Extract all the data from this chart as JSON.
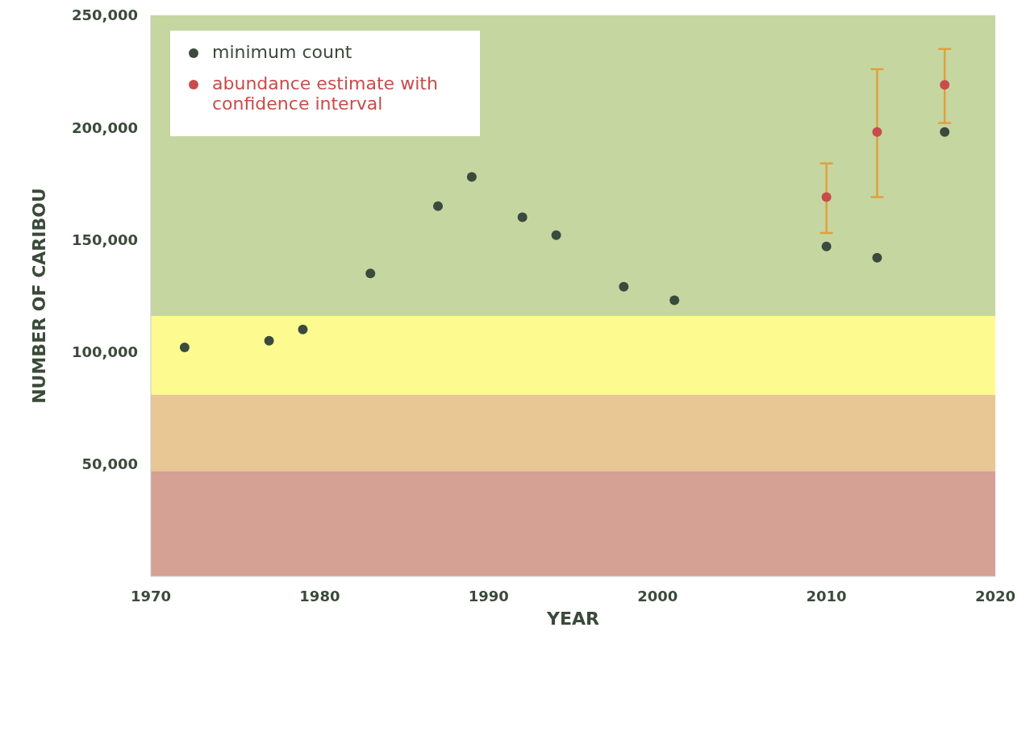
{
  "chart_data": {
    "type": "scatter",
    "xlabel": "YEAR",
    "ylabel": "NUMBER OF CARIBOU",
    "xlim": [
      1970,
      2020
    ],
    "xticks": [
      1970,
      1980,
      1990,
      2000,
      2010,
      2020
    ],
    "ylim": [
      0,
      250000
    ],
    "yticks": [
      {
        "value": 50000,
        "label": "50,000"
      },
      {
        "value": 100000,
        "label": "100,000"
      },
      {
        "value": 150000,
        "label": "150,000"
      },
      {
        "value": 200000,
        "label": "200,000"
      },
      {
        "value": 250000,
        "label": "250,000"
      }
    ],
    "grid": false,
    "legend": "top left",
    "marker": "circle",
    "bands": [
      {
        "axis": "y",
        "from": 0,
        "to": 47000,
        "color": "#d4a194"
      },
      {
        "axis": "y",
        "from": 47000,
        "to": 81000,
        "color": "#e8c795"
      },
      {
        "axis": "y",
        "from": 81000,
        "to": 116000,
        "color": "#fdfb8f"
      },
      {
        "axis": "y",
        "from": 116000,
        "to": 250000,
        "color": "#c5d6a0"
      }
    ],
    "series": [
      {
        "name": "minimum count",
        "color": "#3a4a3d",
        "x": [
          1972,
          1977,
          1979,
          1983,
          1987,
          1989,
          1992,
          1994,
          1998,
          2001,
          2010,
          2013,
          2017
        ],
        "values": [
          102000,
          105000,
          110000,
          135000,
          165000,
          178000,
          160000,
          152000,
          129000,
          123000,
          147000,
          142000,
          198000
        ]
      },
      {
        "name": "abundance estimate with confidence interval",
        "color": "#c94b4b",
        "x": [
          2010,
          2013,
          2017
        ],
        "values": [
          169000,
          198000,
          219000
        ],
        "errors": [
          [
            153000,
            184000
          ],
          [
            169000,
            226000
          ],
          [
            202000,
            235000
          ]
        ]
      }
    ]
  }
}
